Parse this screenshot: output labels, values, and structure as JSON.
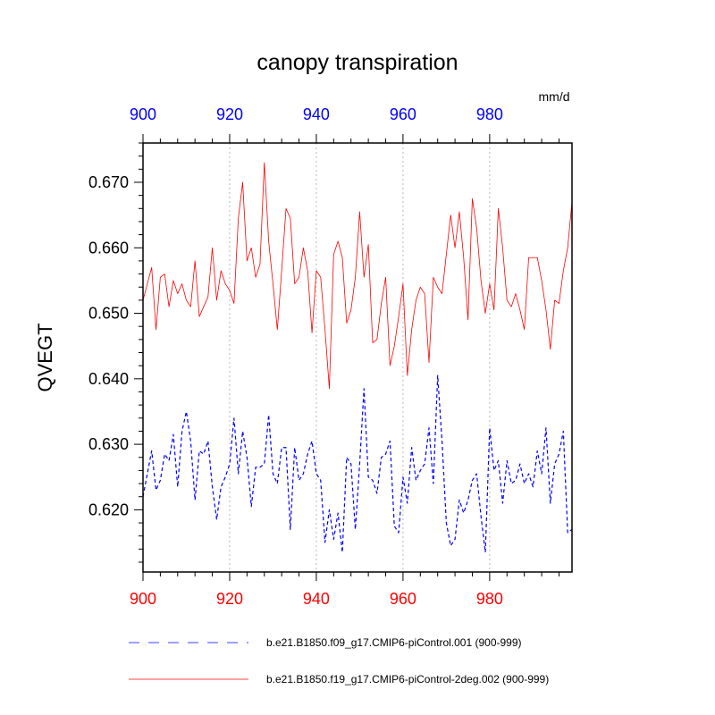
{
  "chart_data": {
    "type": "line",
    "title": "canopy transpiration",
    "units": "mm/d",
    "xlabel": "",
    "ylabel": "QVEGT",
    "xlim": [
      900,
      999
    ],
    "ylim": [
      0.6105,
      0.676
    ],
    "x_ticks": [
      900,
      920,
      940,
      960,
      980
    ],
    "x_tick_labels": [
      "900",
      "920",
      "940",
      "960",
      "980"
    ],
    "y_ticks": [
      0.62,
      0.63,
      0.64,
      0.65,
      0.66,
      0.67
    ],
    "y_tick_labels": [
      "0.620",
      "0.630",
      "0.640",
      "0.650",
      "0.660",
      "0.670"
    ],
    "grid": "vertical dotted lines at major x ticks",
    "colors": {
      "bottom_axis_labels": "#ff0000",
      "top_axis_labels": "#0000ff"
    },
    "x": [
      900,
      901,
      902,
      903,
      904,
      905,
      906,
      907,
      908,
      909,
      910,
      911,
      912,
      913,
      914,
      915,
      916,
      917,
      918,
      919,
      920,
      921,
      922,
      923,
      924,
      925,
      926,
      927,
      928,
      929,
      930,
      931,
      932,
      933,
      934,
      935,
      936,
      937,
      938,
      939,
      940,
      941,
      942,
      943,
      944,
      945,
      946,
      947,
      948,
      949,
      950,
      951,
      952,
      953,
      954,
      955,
      956,
      957,
      958,
      959,
      960,
      961,
      962,
      963,
      964,
      965,
      966,
      967,
      968,
      969,
      970,
      971,
      972,
      973,
      974,
      975,
      976,
      977,
      978,
      979,
      980,
      981,
      982,
      983,
      984,
      985,
      986,
      987,
      988,
      989,
      990,
      991,
      992,
      993,
      994,
      995,
      996,
      997,
      998,
      999
    ],
    "series": [
      {
        "name": "b.e21.B1850.f09_g17.CMIP6-piControl.001 (900-999)",
        "color": "#0000ff",
        "dash": "dashed",
        "values": [
          0.622,
          0.6255,
          0.629,
          0.623,
          0.6245,
          0.6285,
          0.6275,
          0.6315,
          0.6235,
          0.632,
          0.635,
          0.6305,
          0.6215,
          0.629,
          0.6285,
          0.6305,
          0.6235,
          0.6185,
          0.6235,
          0.625,
          0.627,
          0.634,
          0.6255,
          0.632,
          0.628,
          0.6205,
          0.6265,
          0.6265,
          0.627,
          0.6345,
          0.6255,
          0.624,
          0.6295,
          0.6295,
          0.617,
          0.6295,
          0.6245,
          0.6255,
          0.6285,
          0.6305,
          0.6255,
          0.6245,
          0.615,
          0.62,
          0.6155,
          0.6195,
          0.6135,
          0.628,
          0.627,
          0.617,
          0.627,
          0.6385,
          0.625,
          0.6245,
          0.6225,
          0.628,
          0.6285,
          0.6305,
          0.6175,
          0.6165,
          0.625,
          0.621,
          0.6295,
          0.6245,
          0.626,
          0.627,
          0.6325,
          0.624,
          0.6405,
          0.6305,
          0.618,
          0.6145,
          0.6155,
          0.6215,
          0.6195,
          0.6215,
          0.6245,
          0.6255,
          0.619,
          0.6135,
          0.6325,
          0.626,
          0.6275,
          0.621,
          0.6275,
          0.624,
          0.6245,
          0.627,
          0.624,
          0.6255,
          0.6235,
          0.629,
          0.6255,
          0.6325,
          0.621,
          0.627,
          0.6285,
          0.632,
          0.6165,
          0.617
        ]
      },
      {
        "name": "b.e21.B1850.f19_g17.CMIP6-piControl-2deg.002 (900-999)",
        "color": "#ff0000",
        "dash": "solid",
        "values": [
          0.652,
          0.6545,
          0.657,
          0.6475,
          0.6555,
          0.656,
          0.651,
          0.655,
          0.653,
          0.6545,
          0.652,
          0.651,
          0.658,
          0.6495,
          0.651,
          0.6525,
          0.66,
          0.652,
          0.6565,
          0.6545,
          0.6535,
          0.6515,
          0.6645,
          0.67,
          0.658,
          0.66,
          0.6555,
          0.6575,
          0.673,
          0.661,
          0.6545,
          0.6475,
          0.6565,
          0.666,
          0.6645,
          0.6545,
          0.6555,
          0.66,
          0.6565,
          0.647,
          0.6565,
          0.6555,
          0.6475,
          0.6385,
          0.659,
          0.661,
          0.6585,
          0.6485,
          0.6505,
          0.6555,
          0.6655,
          0.6555,
          0.6605,
          0.6455,
          0.646,
          0.6515,
          0.6555,
          0.642,
          0.645,
          0.6495,
          0.6545,
          0.6405,
          0.6475,
          0.652,
          0.654,
          0.653,
          0.6425,
          0.6555,
          0.654,
          0.653,
          0.659,
          0.665,
          0.66,
          0.6655,
          0.6585,
          0.649,
          0.6675,
          0.663,
          0.655,
          0.65,
          0.6545,
          0.6505,
          0.666,
          0.66,
          0.652,
          0.651,
          0.653,
          0.6505,
          0.6475,
          0.6585,
          0.6585,
          0.6585,
          0.655,
          0.6505,
          0.6445,
          0.652,
          0.6515,
          0.6565,
          0.66,
          0.667
        ]
      }
    ]
  }
}
